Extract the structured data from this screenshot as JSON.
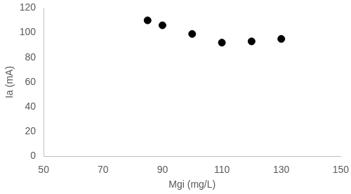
{
  "chart_data": {
    "type": "scatter",
    "x_label": "Mgi (mg/L)",
    "y_label": "Ia (mA)",
    "x": [
      85,
      90,
      100,
      110,
      120,
      130
    ],
    "values": [
      110,
      106,
      99,
      92,
      93,
      95
    ],
    "color": "#000000",
    "marker": "circle",
    "xlim": [
      50,
      150
    ],
    "xticks": [
      50,
      70,
      90,
      110,
      130,
      150
    ],
    "ylim": [
      0,
      120
    ],
    "yticks": [
      0,
      20,
      40,
      60,
      80,
      100,
      120
    ],
    "grid": false
  }
}
